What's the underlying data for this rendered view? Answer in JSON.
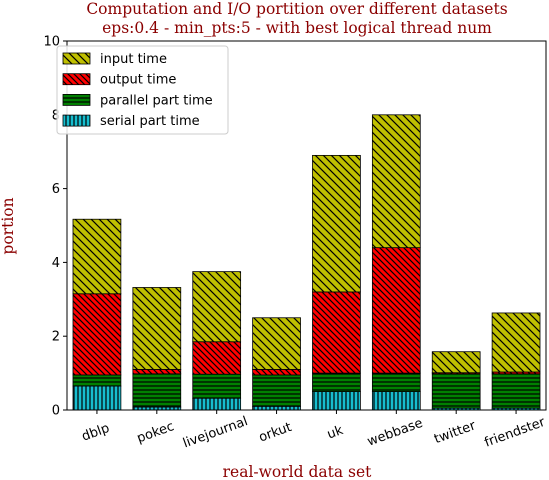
{
  "chart_data": {
    "type": "bar",
    "stacked": true,
    "title": [
      "Computation and I/O portition over different datasets",
      "eps:0.4 - min_pts:5 - with best logical thread num"
    ],
    "xlabel": "real-world data set",
    "ylabel": "portion",
    "ylim": [
      0,
      10
    ],
    "yticks": [
      "0",
      "2",
      "4",
      "6",
      "8",
      "10"
    ],
    "categories": [
      "dblp",
      "pokec",
      "livejournal",
      "orkut",
      "uk",
      "webbase",
      "twitter",
      "friendster"
    ],
    "legend_position": "top-left",
    "series": [
      {
        "name": "serial part time",
        "color": "#17becf",
        "hatch": "vertical",
        "values": [
          0.65,
          0.08,
          0.32,
          0.1,
          0.5,
          0.5,
          0.05,
          0.05
        ]
      },
      {
        "name": "parallel part time",
        "color": "#008000",
        "hatch": "horizontal",
        "values": [
          0.3,
          0.9,
          0.65,
          0.85,
          0.5,
          0.5,
          0.93,
          0.93
        ]
      },
      {
        "name": "output time",
        "color": "#ff0000",
        "hatch": "diagonal",
        "values": [
          2.2,
          0.12,
          0.88,
          0.15,
          2.2,
          3.4,
          0.03,
          0.05
        ]
      },
      {
        "name": "input time",
        "color": "#bfbf00",
        "hatch": "diagonal",
        "values": [
          2.02,
          2.22,
          1.9,
          1.4,
          3.7,
          3.6,
          0.57,
          1.6
        ]
      }
    ],
    "legend_order": [
      "input time",
      "output time",
      "parallel part time",
      "serial part time"
    ]
  }
}
